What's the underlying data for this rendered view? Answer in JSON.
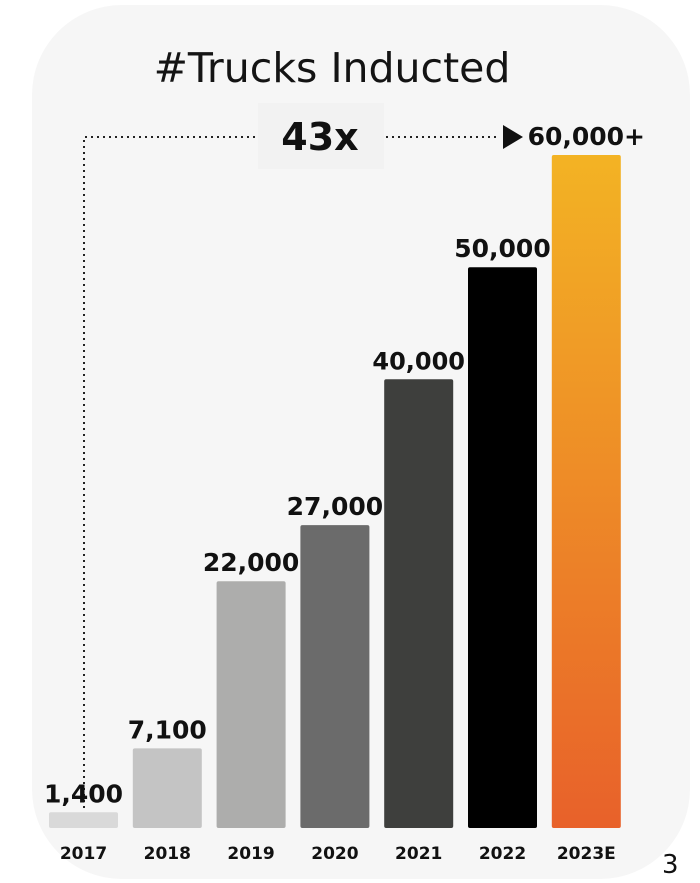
{
  "chart_data": {
    "type": "bar",
    "title": "#Trucks Inducted",
    "categories": [
      "2017",
      "2018",
      "2019",
      "2020",
      "2021",
      "2022",
      "2023E"
    ],
    "values": [
      1400,
      7100,
      22000,
      27000,
      40000,
      50000,
      60000
    ],
    "value_labels": [
      "1,400",
      "7,100",
      "22,000",
      "27,000",
      "40,000",
      "50,000",
      "60,000+"
    ],
    "colors": [
      "#d9d9d9",
      "#c4c4c4",
      "#adadac",
      "#6b6b6b",
      "#3e3f3d",
      "#000000",
      "gradient:#f3b324-#e8612a"
    ],
    "growth_annotation": "43x",
    "grid": false,
    "legend": "none"
  },
  "page_number": "3"
}
